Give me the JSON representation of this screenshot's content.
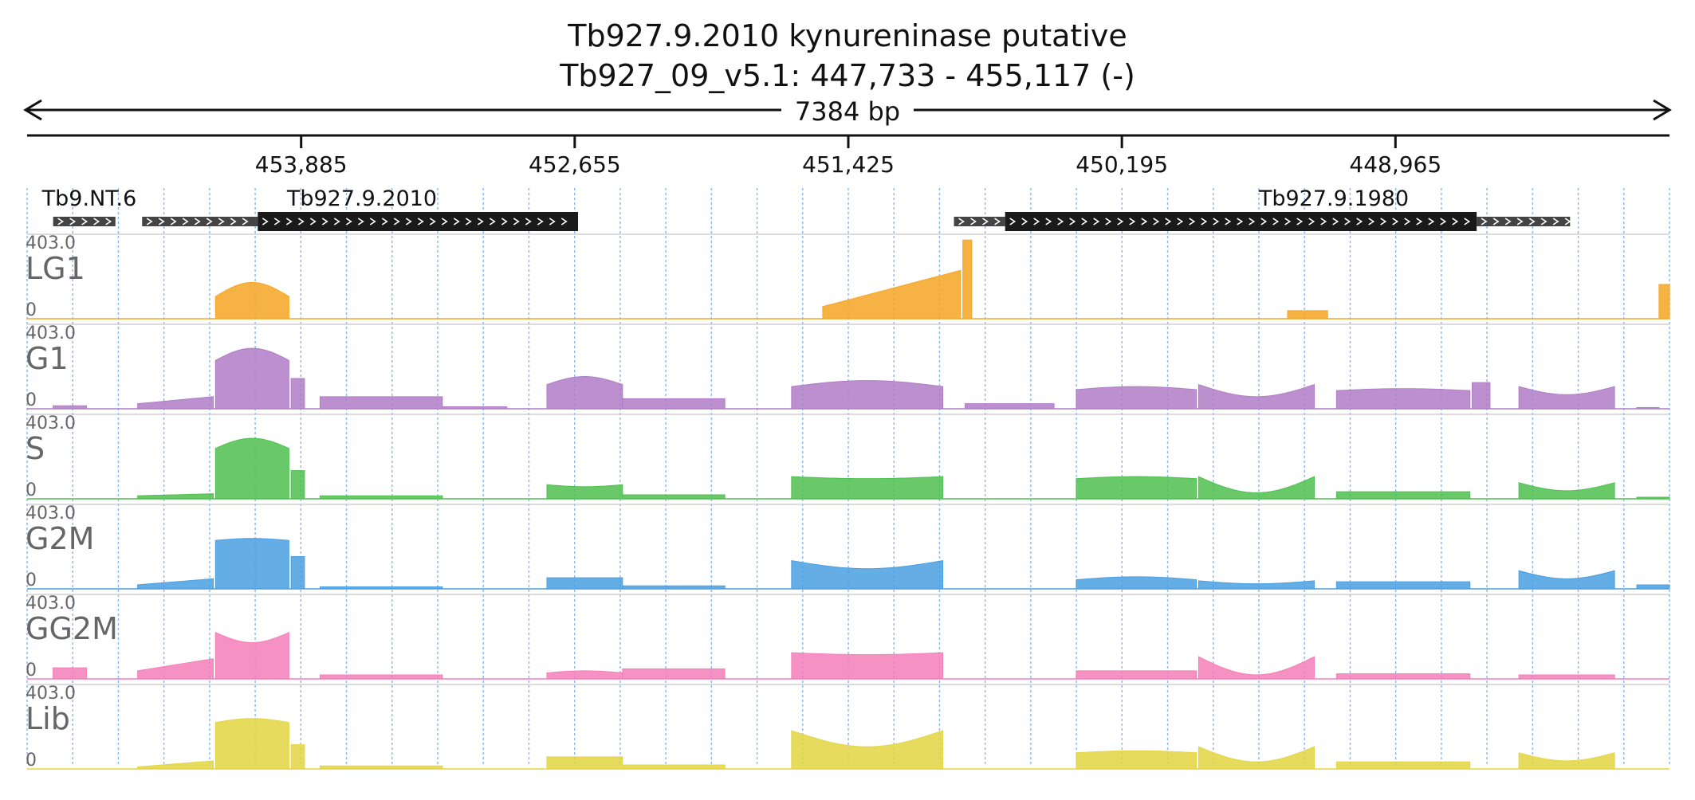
{
  "header": {
    "title": "Tb927.9.2010  kynureninase  putative",
    "locus": "Tb927_09_v5.1: 447,733 - 455,117 (-)",
    "span_label": "7384 bp"
  },
  "colors": {
    "LG1": "#f5a623",
    "G1": "#b07cc6",
    "S": "#4fbf4f",
    "G2M": "#4a9fe0",
    "GG2M": "#f47fb8",
    "Lib": "#e3d542",
    "gene": "#1a1a1a",
    "utr": "#444444",
    "grid": "#8fb4e6"
  },
  "chart_data": {
    "type": "area",
    "title": "Tb927.9.2010  kynureninase  putative",
    "region": {
      "chrom": "Tb927_09_v5.1",
      "start": 447733,
      "end": 455117,
      "strand": "-"
    },
    "x_axis": {
      "reversed": true,
      "ticks": [
        "453,885",
        "452,655",
        "451,425",
        "450,195",
        "448,965"
      ],
      "tick_values": [
        453885,
        452655,
        451425,
        450195,
        448965
      ]
    },
    "y_range": [
      0,
      403.0
    ],
    "y_max_label": "403.0",
    "y_min_label": "0",
    "grid": true,
    "features": [
      {
        "name": "Tb9.NT.6",
        "utr": [
          [
            455000,
            454720
          ]
        ],
        "cds": []
      },
      {
        "name": "Tb927.9.2010",
        "utr": [
          [
            454600,
            454080
          ]
        ],
        "cds": [
          [
            454080,
            452640
          ]
        ]
      },
      {
        "name": "Tb927.9.1980",
        "utr": [
          [
            450950,
            450720
          ],
          [
            448600,
            448180
          ]
        ],
        "cds": [
          [
            450720,
            448600
          ]
        ]
      }
    ],
    "tracks": [
      {
        "name": "LG1",
        "segments": [
          {
            "from": 454270,
            "to": 453940,
            "shape": "hump",
            "peak": 180,
            "edge": 110
          },
          {
            "from": 451540,
            "to": 450920,
            "shape": "ramp",
            "peak": 240,
            "edge": 60
          },
          {
            "from": 450910,
            "to": 450870,
            "shape": "block",
            "peak": 390
          },
          {
            "from": 449450,
            "to": 449270,
            "shape": "block",
            "peak": 40
          },
          {
            "from": 447780,
            "to": 447733,
            "shape": "block",
            "peak": 170
          }
        ]
      },
      {
        "name": "G1",
        "segments": [
          {
            "from": 455000,
            "to": 454850,
            "shape": "block",
            "peak": 15
          },
          {
            "from": 454620,
            "to": 454280,
            "shape": "ramp",
            "peak": 60,
            "edge": 25
          },
          {
            "from": 454270,
            "to": 453940,
            "shape": "hump",
            "peak": 300,
            "edge": 240
          },
          {
            "from": 453930,
            "to": 453870,
            "shape": "block",
            "peak": 150
          },
          {
            "from": 453800,
            "to": 453250,
            "shape": "block",
            "peak": 60
          },
          {
            "from": 453250,
            "to": 452960,
            "shape": "block",
            "peak": 10
          },
          {
            "from": 452780,
            "to": 452440,
            "shape": "hump",
            "peak": 160,
            "edge": 120
          },
          {
            "from": 452440,
            "to": 451980,
            "shape": "block",
            "peak": 50
          },
          {
            "from": 451680,
            "to": 451000,
            "shape": "hump",
            "peak": 140,
            "edge": 110
          },
          {
            "from": 450900,
            "to": 450500,
            "shape": "block",
            "peak": 25
          },
          {
            "from": 450400,
            "to": 449860,
            "shape": "hump",
            "peak": 110,
            "edge": 95
          },
          {
            "from": 449850,
            "to": 449330,
            "shape": "hump",
            "peak": 60,
            "edge": 120
          },
          {
            "from": 449230,
            "to": 448630,
            "shape": "hump",
            "peak": 100,
            "edge": 90
          },
          {
            "from": 448620,
            "to": 448540,
            "shape": "block",
            "peak": 130
          },
          {
            "from": 448410,
            "to": 447980,
            "shape": "hump",
            "peak": 70,
            "edge": 110
          },
          {
            "from": 447880,
            "to": 447780,
            "shape": "block",
            "peak": 6
          }
        ]
      },
      {
        "name": "S",
        "segments": [
          {
            "from": 454620,
            "to": 454280,
            "shape": "ramp",
            "peak": 25,
            "edge": 15
          },
          {
            "from": 454270,
            "to": 453940,
            "shape": "hump",
            "peak": 300,
            "edge": 250
          },
          {
            "from": 453930,
            "to": 453870,
            "shape": "block",
            "peak": 140
          },
          {
            "from": 453800,
            "to": 453250,
            "shape": "block",
            "peak": 15
          },
          {
            "from": 452780,
            "to": 452440,
            "shape": "hump",
            "peak": 60,
            "edge": 70
          },
          {
            "from": 452440,
            "to": 451980,
            "shape": "block",
            "peak": 20
          },
          {
            "from": 451680,
            "to": 451000,
            "shape": "hump",
            "peak": 100,
            "edge": 110
          },
          {
            "from": 450400,
            "to": 449860,
            "shape": "hump",
            "peak": 110,
            "edge": 100
          },
          {
            "from": 449850,
            "to": 449330,
            "shape": "hump",
            "peak": 30,
            "edge": 110
          },
          {
            "from": 449230,
            "to": 448630,
            "shape": "block",
            "peak": 35
          },
          {
            "from": 448410,
            "to": 447980,
            "shape": "hump",
            "peak": 40,
            "edge": 80
          },
          {
            "from": 447880,
            "to": 447733,
            "shape": "block",
            "peak": 8
          }
        ]
      },
      {
        "name": "G2M",
        "segments": [
          {
            "from": 454620,
            "to": 454280,
            "shape": "ramp",
            "peak": 50,
            "edge": 20
          },
          {
            "from": 454270,
            "to": 453940,
            "shape": "hump",
            "peak": 250,
            "edge": 240
          },
          {
            "from": 453930,
            "to": 453870,
            "shape": "block",
            "peak": 160
          },
          {
            "from": 453800,
            "to": 453250,
            "shape": "block",
            "peak": 10
          },
          {
            "from": 452780,
            "to": 452440,
            "shape": "block",
            "peak": 55
          },
          {
            "from": 452440,
            "to": 451980,
            "shape": "block",
            "peak": 15
          },
          {
            "from": 451680,
            "to": 451000,
            "shape": "hump",
            "peak": 100,
            "edge": 140
          },
          {
            "from": 450400,
            "to": 449860,
            "shape": "hump",
            "peak": 60,
            "edge": 45
          },
          {
            "from": 449850,
            "to": 449330,
            "shape": "hump",
            "peak": 25,
            "edge": 40
          },
          {
            "from": 449230,
            "to": 448630,
            "shape": "block",
            "peak": 35
          },
          {
            "from": 448410,
            "to": 447980,
            "shape": "hump",
            "peak": 50,
            "edge": 90
          },
          {
            "from": 447880,
            "to": 447733,
            "shape": "block",
            "peak": 20
          }
        ]
      },
      {
        "name": "GG2M",
        "segments": [
          {
            "from": 455000,
            "to": 454850,
            "shape": "block",
            "peak": 55
          },
          {
            "from": 454620,
            "to": 454280,
            "shape": "ramp",
            "peak": 100,
            "edge": 40
          },
          {
            "from": 454270,
            "to": 453940,
            "shape": "hump",
            "peak": 180,
            "edge": 230
          },
          {
            "from": 453800,
            "to": 453250,
            "shape": "block",
            "peak": 20
          },
          {
            "from": 452780,
            "to": 452440,
            "shape": "hump",
            "peak": 40,
            "edge": 30
          },
          {
            "from": 452440,
            "to": 451980,
            "shape": "hump",
            "peak": 50,
            "edge": 50
          },
          {
            "from": 451680,
            "to": 451000,
            "shape": "hump",
            "peak": 120,
            "edge": 130
          },
          {
            "from": 450400,
            "to": 449860,
            "shape": "hump",
            "peak": 40,
            "edge": 40
          },
          {
            "from": 449850,
            "to": 449330,
            "shape": "hump",
            "peak": 20,
            "edge": 110
          },
          {
            "from": 449230,
            "to": 448630,
            "shape": "block",
            "peak": 25
          },
          {
            "from": 448410,
            "to": 447980,
            "shape": "block",
            "peak": 20
          }
        ]
      },
      {
        "name": "Lib",
        "segments": [
          {
            "from": 454620,
            "to": 454280,
            "shape": "ramp",
            "peak": 40,
            "edge": 10
          },
          {
            "from": 454270,
            "to": 453940,
            "shape": "hump",
            "peak": 250,
            "edge": 230
          },
          {
            "from": 453930,
            "to": 453870,
            "shape": "block",
            "peak": 120
          },
          {
            "from": 453800,
            "to": 453250,
            "shape": "block",
            "peak": 15
          },
          {
            "from": 452780,
            "to": 452440,
            "shape": "hump",
            "peak": 60,
            "edge": 60
          },
          {
            "from": 452440,
            "to": 451980,
            "shape": "block",
            "peak": 20
          },
          {
            "from": 451680,
            "to": 451000,
            "shape": "hump",
            "peak": 110,
            "edge": 190
          },
          {
            "from": 450400,
            "to": 449860,
            "shape": "hump",
            "peak": 90,
            "edge": 80
          },
          {
            "from": 449850,
            "to": 449330,
            "shape": "hump",
            "peak": 35,
            "edge": 110
          },
          {
            "from": 449230,
            "to": 448630,
            "shape": "block",
            "peak": 35
          },
          {
            "from": 448410,
            "to": 447980,
            "shape": "hump",
            "peak": 40,
            "edge": 80
          }
        ]
      }
    ]
  }
}
